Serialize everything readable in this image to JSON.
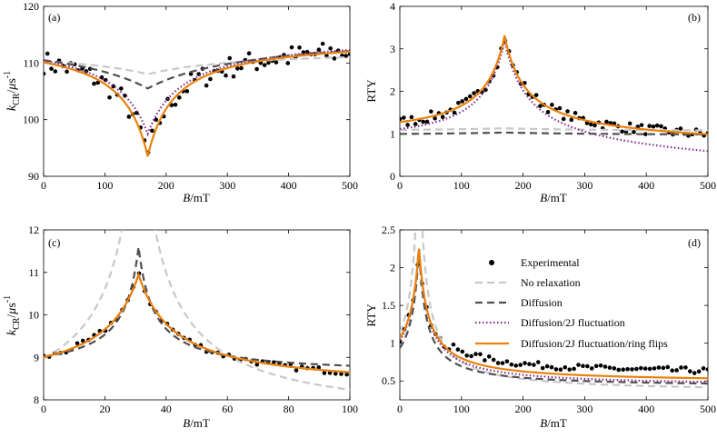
{
  "figure": {
    "legend": [
      {
        "label": "Experimental",
        "style": "dots",
        "color": "#000000"
      },
      {
        "label": "No relaxation",
        "style": "dashed",
        "color": "#c8c8c8"
      },
      {
        "label": "Diffusion",
        "style": "dashed",
        "color": "#505050"
      },
      {
        "label": "Diffusion/2J fluctuation",
        "style": "dotted",
        "color": "#7e2f8e"
      },
      {
        "label": "Diffusion/2J fluctuation/ring flips",
        "style": "solid",
        "color": "#e8820c"
      }
    ],
    "colors": {
      "experimental": "#000000",
      "no_relaxation": "#c8c8c8",
      "diffusion": "#505050",
      "fluctuation": "#7e2f8e",
      "ring_flips": "#e8820c"
    }
  },
  "chart_data": [
    {
      "panel": "(a)",
      "type": "line",
      "title": "",
      "xlabel": "B/mT",
      "ylabel": "k_CR/μs⁻¹",
      "xlim": [
        0,
        500
      ],
      "ylim": [
        90,
        120
      ],
      "xticks": [
        0,
        100,
        200,
        300,
        400,
        500
      ],
      "yticks": [
        90,
        100,
        110,
        120
      ],
      "model": {
        "type": "dip",
        "center": 170
      },
      "series": [
        {
          "name": "No relaxation",
          "base": 112.5,
          "depth": 4.5,
          "width": 160
        },
        {
          "name": "Diffusion",
          "base": 115.5,
          "depth": 10.0,
          "width": 170
        },
        {
          "name": "Diffusion/2J fluctuation",
          "base": 115.0,
          "depth": 17.5,
          "width": 60
        },
        {
          "name": "Diffusion/2J fluctuation/ring flips",
          "base": 114.5,
          "depth": 21.0,
          "width": 45
        }
      ],
      "experimental": {
        "x_start": 0,
        "x_end": 500,
        "n": 80,
        "noise": 2.0
      }
    },
    {
      "panel": "(b)",
      "type": "line",
      "title": "",
      "xlabel": "B/mT",
      "ylabel": "RTY",
      "xlim": [
        0,
        500
      ],
      "ylim": [
        0,
        4
      ],
      "xticks": [
        0,
        100,
        200,
        300,
        400,
        500
      ],
      "yticks": [
        0,
        1,
        2,
        3,
        4
      ],
      "model": {
        "type": "peak",
        "center": 170
      },
      "series": [
        {
          "name": "No relaxation",
          "base": 1.05,
          "amp": 0.08,
          "width": 200,
          "slope": 0
        },
        {
          "name": "Diffusion",
          "base": 0.95,
          "amp": 0.08,
          "width": 250,
          "slope": 0
        },
        {
          "name": "Diffusion/2J fluctuation",
          "base": 0.6,
          "amp": 2.7,
          "width": 40,
          "slope": -0.0006
        },
        {
          "name": "Diffusion/2J fluctuation/ring flips",
          "base": 0.85,
          "amp": 2.5,
          "width": 35,
          "slope": -0.0002
        }
      ],
      "experimental": {
        "x_start": 0,
        "x_end": 500,
        "n": 80,
        "noise": 0.12
      }
    },
    {
      "panel": "(c)",
      "type": "line",
      "title": "",
      "xlabel": "B/mT",
      "ylabel": "k_CR/μs⁻¹",
      "xlim": [
        0,
        100
      ],
      "ylim": [
        8,
        12
      ],
      "xticks": [
        0,
        20,
        40,
        60,
        80,
        100
      ],
      "yticks": [
        8,
        9,
        10,
        11,
        12
      ],
      "model": {
        "type": "peak",
        "center": 31
      },
      "series": [
        {
          "name": "No relaxation",
          "base": 7.5,
          "amp": 8.0,
          "width": 7,
          "slope": 0
        },
        {
          "name": "Diffusion",
          "base": 8.6,
          "amp": 3.0,
          "width": 5,
          "slope": 0
        },
        {
          "name": "Diffusion/2J fluctuation",
          "base": 8.25,
          "amp": 2.7,
          "width": 12,
          "slope": 0
        },
        {
          "name": "Diffusion/2J fluctuation/ring flips",
          "base": 8.25,
          "amp": 2.7,
          "width": 12,
          "slope": 0
        }
      ],
      "experimental": {
        "x_start": 0,
        "x_end": 99,
        "n": 55,
        "noise": 0.07
      }
    },
    {
      "panel": "(d)",
      "type": "line",
      "title": "",
      "xlabel": "B/mT",
      "ylabel": "RTY",
      "xlim": [
        0,
        500
      ],
      "ylim": [
        0.25,
        2.5
      ],
      "xticks": [
        0,
        100,
        200,
        300,
        400,
        500
      ],
      "yticks": [
        0.5,
        1,
        1.5,
        2,
        2.5
      ],
      "model": {
        "type": "peak",
        "center": 31
      },
      "series": [
        {
          "name": "No relaxation",
          "base": 0.35,
          "amp": 3.5,
          "width": 9,
          "slope": 0
        },
        {
          "name": "Diffusion",
          "base": 0.42,
          "amp": 1.85,
          "width": 12,
          "slope": 0
        },
        {
          "name": "Diffusion/2J fluctuation",
          "base": 0.43,
          "amp": 1.85,
          "width": 15,
          "slope": 0
        },
        {
          "name": "Diffusion/2J fluctuation/ring flips",
          "base": 0.48,
          "amp": 1.8,
          "width": 15,
          "slope": 0
        }
      ],
      "experimental": {
        "x_start": 0,
        "x_end": 500,
        "n": 70,
        "noise": 0.04,
        "offset": 0.1
      }
    }
  ]
}
